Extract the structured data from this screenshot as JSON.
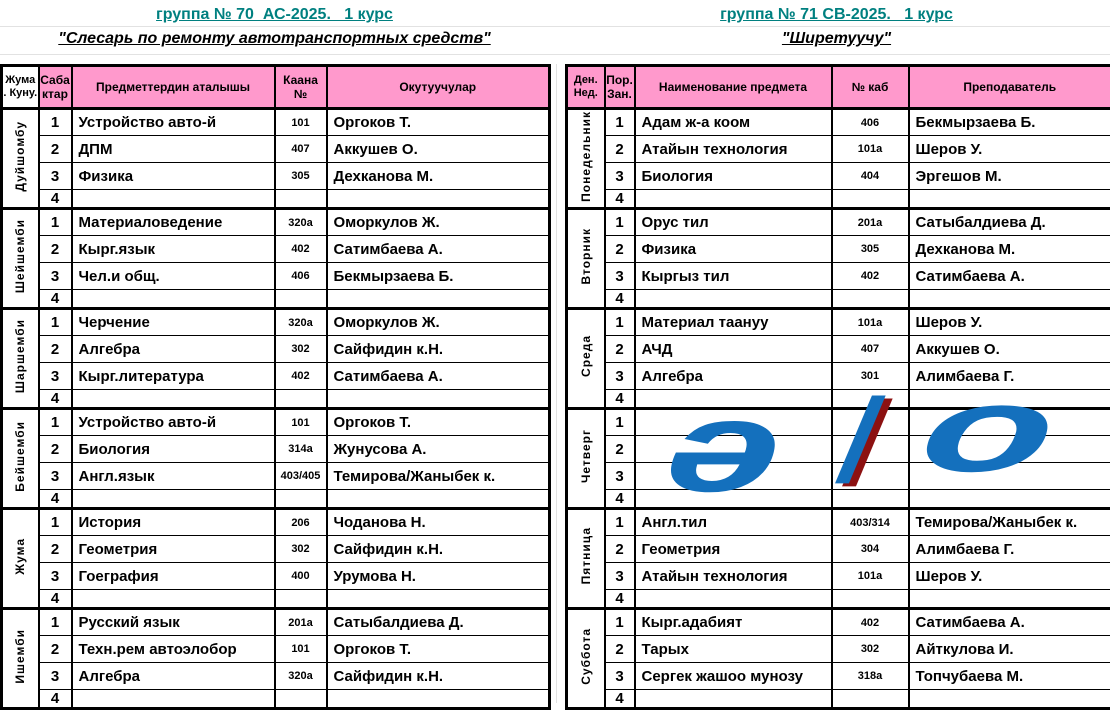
{
  "colors": {
    "header_pink": "#FF99CC",
    "title_teal": "#008080",
    "logo_blue": "#1470BD",
    "logo_red": "#8C1111",
    "grid_black": "#000000"
  },
  "tables": [
    {
      "id": "left",
      "title": "группа № 70  АС-2025.   1 курс",
      "subtitle": "\"Слесарь по ремонту автотранспортных средств\"",
      "headers": {
        "day": "Жума . Куну.",
        "num": "Саба ктар",
        "subject": "Предметтердин аталышы",
        "room": "Каана №",
        "teacher": "Окутуучулар"
      },
      "days": [
        {
          "name": "Дуйшомбу",
          "lessons": [
            {
              "n": "1",
              "subject": "Устройство авто-й",
              "room": "101",
              "teacher": "Оргоков Т."
            },
            {
              "n": "2",
              "subject": "ДПМ",
              "room": "407",
              "teacher": "Аккушев О."
            },
            {
              "n": "3",
              "subject": "Физика",
              "room": "305",
              "teacher": "Дехканова М."
            },
            {
              "n": "4",
              "subject": "",
              "room": "",
              "teacher": ""
            }
          ]
        },
        {
          "name": "Шейшемби",
          "lessons": [
            {
              "n": "1",
              "subject": "Материаловедение",
              "room": "320а",
              "teacher": "Оморкулов Ж."
            },
            {
              "n": "2",
              "subject": "Кырг.язык",
              "room": "402",
              "teacher": "Сатимбаева А."
            },
            {
              "n": "3",
              "subject": "Чел.и общ.",
              "room": "406",
              "teacher": "Бекмырзаева Б."
            },
            {
              "n": "4",
              "subject": "",
              "room": "",
              "teacher": ""
            }
          ]
        },
        {
          "name": "Шаршемби",
          "lessons": [
            {
              "n": "1",
              "subject": "Черчение",
              "room": "320а",
              "teacher": "Оморкулов Ж."
            },
            {
              "n": "2",
              "subject": "Алгебра",
              "room": "302",
              "teacher": "Сайфидин к.Н."
            },
            {
              "n": "3",
              "subject": "Кырг.литература",
              "room": "402",
              "teacher": "Сатимбаева А."
            },
            {
              "n": "4",
              "subject": "",
              "room": "",
              "teacher": ""
            }
          ]
        },
        {
          "name": "Бейшемби",
          "lessons": [
            {
              "n": "1",
              "subject": "Устройство авто-й",
              "room": "101",
              "teacher": "Оргоков Т."
            },
            {
              "n": "2",
              "subject": "Биология",
              "room": "314а",
              "teacher": "Жунусова А."
            },
            {
              "n": "3",
              "subject": "Англ.язык",
              "room": "403/405",
              "teacher": "Темирова/Жаныбек к."
            },
            {
              "n": "4",
              "subject": "",
              "room": "",
              "teacher": ""
            }
          ]
        },
        {
          "name": "Жума",
          "lessons": [
            {
              "n": "1",
              "subject": "История",
              "room": "206",
              "teacher": "Чоданова Н."
            },
            {
              "n": "2",
              "subject": "Геометрия",
              "room": "302",
              "teacher": "Сайфидин к.Н."
            },
            {
              "n": "3",
              "subject": "Гоеграфия",
              "room": "400",
              "teacher": "Урумова Н."
            },
            {
              "n": "4",
              "subject": "",
              "room": "",
              "teacher": ""
            }
          ]
        },
        {
          "name": "Ишемби",
          "lessons": [
            {
              "n": "1",
              "subject": "Русский язык",
              "room": "201а",
              "teacher": "Сатыбалдиева Д."
            },
            {
              "n": "2",
              "subject": "Техн.рем автоэлобор",
              "room": "101",
              "teacher": "Оргоков Т."
            },
            {
              "n": "3",
              "subject": "Алгебра",
              "room": "320а",
              "teacher": "Сайфидин к.Н."
            },
            {
              "n": "4",
              "subject": "",
              "room": "",
              "teacher": ""
            }
          ]
        }
      ]
    },
    {
      "id": "right",
      "title": "группа № 71 СВ-2025.   1 курс",
      "subtitle": "\"Ширетуучу\"",
      "headers": {
        "day": "Ден. Нед.",
        "num": "Пор. Зан.",
        "subject": "Наименование предмета",
        "room": "№ каб",
        "teacher": "Преподаватель"
      },
      "days": [
        {
          "name": "Понедельник",
          "lessons": [
            {
              "n": "1",
              "subject": "Адам ж-а коом",
              "room": "406",
              "teacher": "Бекмырзаева Б."
            },
            {
              "n": "2",
              "subject": "Атайын технология",
              "room": "101а",
              "teacher": "Шеров У."
            },
            {
              "n": "3",
              "subject": "Биология",
              "room": "404",
              "teacher": "Эргешов М."
            },
            {
              "n": "4",
              "subject": "",
              "room": "",
              "teacher": ""
            }
          ]
        },
        {
          "name": "Вторник",
          "lessons": [
            {
              "n": "1",
              "subject": "Орус тил",
              "room": "201а",
              "teacher": "Сатыбалдиева Д."
            },
            {
              "n": "2",
              "subject": "Физика",
              "room": "305",
              "teacher": "Дехканова М."
            },
            {
              "n": "3",
              "subject": "Кыргыз  тил",
              "room": "402",
              "teacher": "Сатимбаева А."
            },
            {
              "n": "4",
              "subject": "",
              "room": "",
              "teacher": ""
            }
          ]
        },
        {
          "name": "Среда",
          "lessons": [
            {
              "n": "1",
              "subject": "Материал таануу",
              "room": "101а",
              "teacher": "Шеров У."
            },
            {
              "n": "2",
              "subject": "АЧД",
              "room": "407",
              "teacher": "Аккушев О."
            },
            {
              "n": "3",
              "subject": "Алгебра",
              "room": "301",
              "teacher": "Алимбаева Г."
            },
            {
              "n": "4",
              "subject": "",
              "room": "",
              "teacher": ""
            }
          ]
        },
        {
          "name": "Четверг",
          "lessons": [
            {
              "n": "1",
              "subject": "",
              "room": "",
              "teacher": ""
            },
            {
              "n": "2",
              "subject": "",
              "room": "",
              "teacher": ""
            },
            {
              "n": "3",
              "subject": "",
              "room": "",
              "teacher": ""
            },
            {
              "n": "4",
              "subject": "",
              "room": "",
              "teacher": ""
            }
          ]
        },
        {
          "name": "Пятница",
          "lessons": [
            {
              "n": "1",
              "subject": "Англ.тил",
              "room": "403/314",
              "teacher": "Темирова/Жаныбек к."
            },
            {
              "n": "2",
              "subject": "Геометрия",
              "room": "304",
              "teacher": "Алимбаева Г."
            },
            {
              "n": "3",
              "subject": "Атайын технология",
              "room": "101а",
              "teacher": "Шеров У."
            },
            {
              "n": "4",
              "subject": "",
              "room": "",
              "teacher": ""
            }
          ]
        },
        {
          "name": "Суббота",
          "lessons": [
            {
              "n": "1",
              "subject": "Кырг.адабият",
              "room": "402",
              "teacher": "Сатимбаева А."
            },
            {
              "n": "2",
              "subject": "Тарых",
              "room": "302",
              "teacher": "Айткулова И."
            },
            {
              "n": "3",
              "subject": "Сергек жашоо мунозу",
              "room": "318а",
              "teacher": "Топчубаева М."
            },
            {
              "n": "4",
              "subject": "",
              "room": "",
              "teacher": ""
            }
          ]
        }
      ]
    }
  ],
  "logo": {
    "char_left": "ә",
    "char_slash": "/",
    "char_right": "о"
  }
}
